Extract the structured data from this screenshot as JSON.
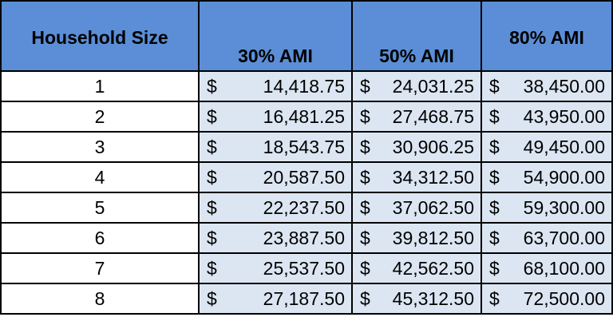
{
  "table": {
    "headers": [
      "Household  Size",
      "30% AMI",
      "50% AMI",
      "80% AMI"
    ],
    "currency_symbol": "$",
    "rows": [
      {
        "size": "1",
        "ami30": "14,418.75",
        "ami50": "24,031.25",
        "ami80": "38,450.00"
      },
      {
        "size": "2",
        "ami30": "16,481.25",
        "ami50": "27,468.75",
        "ami80": "43,950.00"
      },
      {
        "size": "3",
        "ami30": "18,543.75",
        "ami50": "30,906.25",
        "ami80": "49,450.00"
      },
      {
        "size": "4",
        "ami30": "20,587.50",
        "ami50": "34,312.50",
        "ami80": "54,900.00"
      },
      {
        "size": "5",
        "ami30": "22,237.50",
        "ami50": "37,062.50",
        "ami80": "59,300.00"
      },
      {
        "size": "6",
        "ami30": "23,887.50",
        "ami50": "39,812.50",
        "ami80": "63,700.00"
      },
      {
        "size": "7",
        "ami30": "25,537.50",
        "ami50": "42,562.50",
        "ami80": "68,100.00"
      },
      {
        "size": "8",
        "ami30": "27,187.50",
        "ami50": "45,312.50",
        "ami80": "72,500.00"
      }
    ]
  },
  "colors": {
    "header_background": "#5b8ed6",
    "money_cell_background": "#dce6f2",
    "border": "#000000"
  }
}
